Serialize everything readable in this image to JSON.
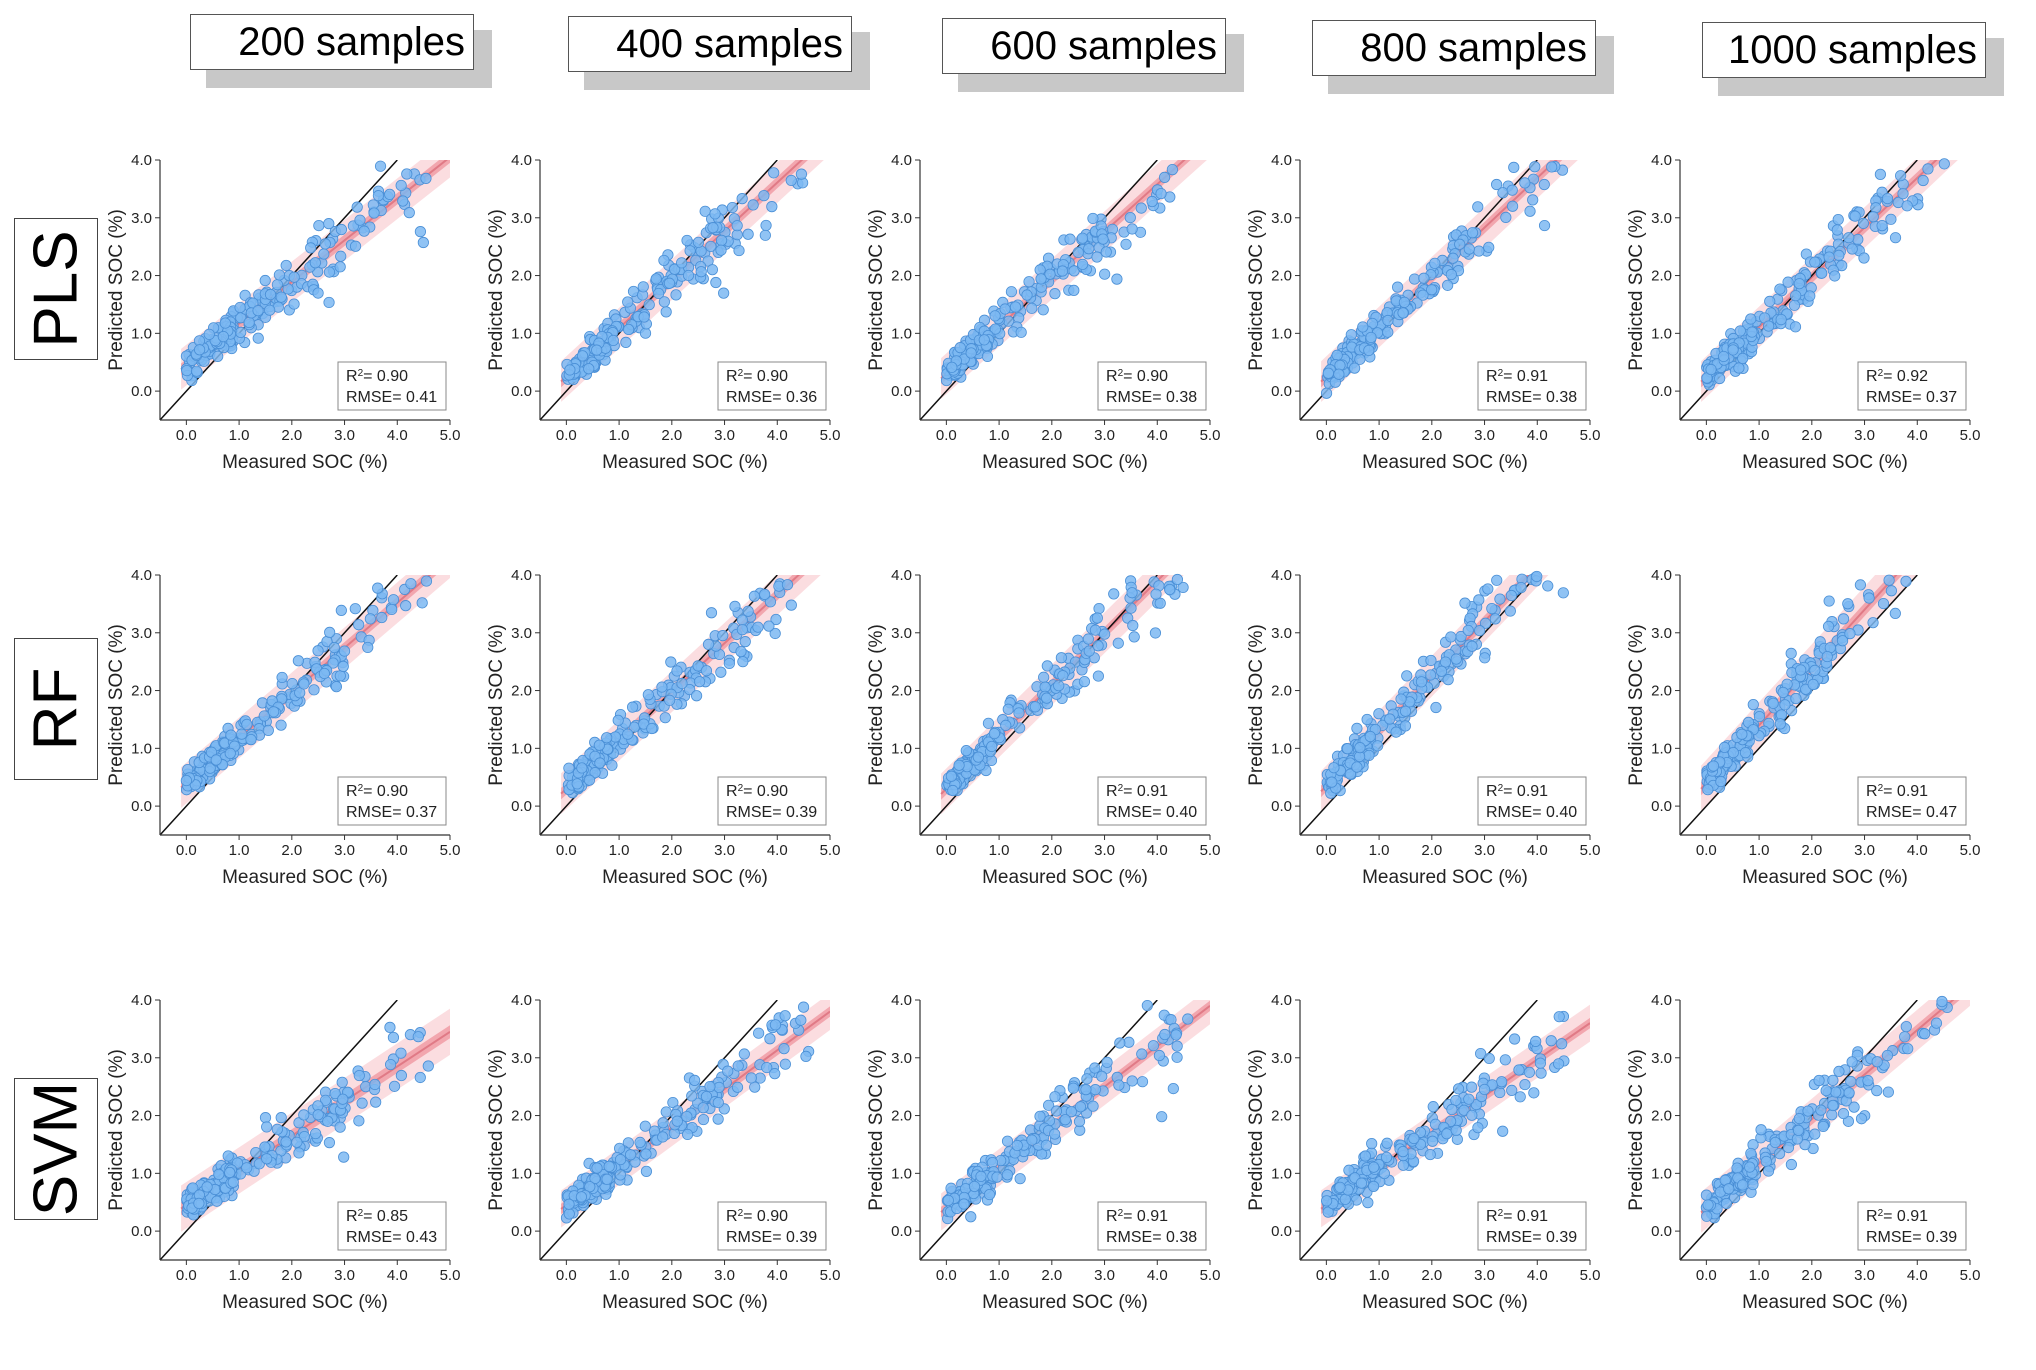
{
  "colors": {
    "point": "#7cb9f2",
    "point_edge": "#4a8fd6",
    "fit": "#e07a86",
    "band_inner": "#f2a6ae",
    "band_outer": "#fbdde0",
    "ref_line": "#111111"
  },
  "column_headers": [
    "200 samples",
    "400 samples",
    "600 samples",
    "800 samples",
    "1000 samples"
  ],
  "row_headers": [
    "PLS",
    "RF",
    "SVM"
  ],
  "chart_data": [
    {
      "type": "scatter",
      "model": "PLS",
      "samples": 200,
      "xlabel": "Measured SOC (%)",
      "ylabel": "Predicted SOC (%)",
      "xlim": [
        -0.5,
        5.0
      ],
      "ylim": [
        -0.5,
        4.0
      ],
      "xticks": [
        "0.0",
        "1.0",
        "2.0",
        "3.0",
        "4.0",
        "5.0"
      ],
      "yticks": [
        "0.0",
        "1.0",
        "2.0",
        "3.0",
        "4.0"
      ],
      "r2_label": "R",
      "r2_value": "= 0.90",
      "rmse_label": "RMSE= 0.41",
      "fit": {
        "slope": 0.72,
        "intercept": 0.45
      },
      "band": 0.22
    },
    {
      "type": "scatter",
      "model": "PLS",
      "samples": 400,
      "xlabel": "Measured SOC (%)",
      "ylabel": "Predicted SOC (%)",
      "xlim": [
        -0.5,
        5.0
      ],
      "ylim": [
        -0.5,
        4.0
      ],
      "xticks": [
        "0.0",
        "1.0",
        "2.0",
        "3.0",
        "4.0",
        "5.0"
      ],
      "yticks": [
        "0.0",
        "1.0",
        "2.0",
        "3.0",
        "4.0"
      ],
      "r2_label": "R",
      "r2_value": "= 0.90",
      "rmse_label": "RMSE= 0.36",
      "fit": {
        "slope": 0.84,
        "intercept": 0.25
      },
      "band": 0.22
    },
    {
      "type": "scatter",
      "model": "PLS",
      "samples": 600,
      "xlabel": "Measured SOC (%)",
      "ylabel": "Predicted SOC (%)",
      "xlim": [
        -0.5,
        5.0
      ],
      "ylim": [
        -0.5,
        4.0
      ],
      "xticks": [
        "0.0",
        "1.0",
        "2.0",
        "3.0",
        "4.0",
        "5.0"
      ],
      "yticks": [
        "0.0",
        "1.0",
        "2.0",
        "3.0",
        "4.0"
      ],
      "r2_label": "R",
      "r2_value": "= 0.90",
      "rmse_label": "RMSE= 0.38",
      "fit": {
        "slope": 0.82,
        "intercept": 0.3
      },
      "band": 0.22
    },
    {
      "type": "scatter",
      "model": "PLS",
      "samples": 800,
      "xlabel": "Measured SOC (%)",
      "ylabel": "Predicted SOC (%)",
      "xlim": [
        -0.5,
        5.0
      ],
      "ylim": [
        -0.5,
        4.0
      ],
      "xticks": [
        "0.0",
        "1.0",
        "2.0",
        "3.0",
        "4.0",
        "5.0"
      ],
      "yticks": [
        "0.0",
        "1.0",
        "2.0",
        "3.0",
        "4.0"
      ],
      "r2_label": "R",
      "r2_value": "= 0.91",
      "rmse_label": "RMSE= 0.38",
      "fit": {
        "slope": 0.86,
        "intercept": 0.25
      },
      "band": 0.22
    },
    {
      "type": "scatter",
      "model": "PLS",
      "samples": 1000,
      "xlabel": "Measured SOC (%)",
      "ylabel": "Predicted SOC (%)",
      "xlim": [
        -0.5,
        5.0
      ],
      "ylim": [
        -0.5,
        4.0
      ],
      "xticks": [
        "0.0",
        "1.0",
        "2.0",
        "3.0",
        "4.0",
        "5.0"
      ],
      "yticks": [
        "0.0",
        "1.0",
        "2.0",
        "3.0",
        "4.0"
      ],
      "r2_label": "R",
      "r2_value": "= 0.92",
      "rmse_label": "RMSE= 0.37",
      "fit": {
        "slope": 0.86,
        "intercept": 0.25
      },
      "band": 0.22
    },
    {
      "type": "scatter",
      "model": "RF",
      "samples": 200,
      "xlabel": "Measured SOC (%)",
      "ylabel": "Predicted SOC (%)",
      "xlim": [
        -0.5,
        5.0
      ],
      "ylim": [
        -0.5,
        4.0
      ],
      "xticks": [
        "0.0",
        "1.0",
        "2.0",
        "3.0",
        "4.0",
        "5.0"
      ],
      "yticks": [
        "0.0",
        "1.0",
        "2.0",
        "3.0",
        "4.0"
      ],
      "r2_label": "R",
      "r2_value": "= 0.90",
      "rmse_label": "RMSE= 0.37",
      "fit": {
        "slope": 0.78,
        "intercept": 0.4
      },
      "band": 0.22
    },
    {
      "type": "scatter",
      "model": "RF",
      "samples": 400,
      "xlabel": "Measured SOC (%)",
      "ylabel": "Predicted SOC (%)",
      "xlim": [
        -0.5,
        5.0
      ],
      "ylim": [
        -0.5,
        4.0
      ],
      "xticks": [
        "0.0",
        "1.0",
        "2.0",
        "3.0",
        "4.0",
        "5.0"
      ],
      "yticks": [
        "0.0",
        "1.0",
        "2.0",
        "3.0",
        "4.0"
      ],
      "r2_label": "R",
      "r2_value": "= 0.90",
      "rmse_label": "RMSE= 0.39",
      "fit": {
        "slope": 0.84,
        "intercept": 0.3
      },
      "band": 0.22
    },
    {
      "type": "scatter",
      "model": "RF",
      "samples": 600,
      "xlabel": "Measured SOC (%)",
      "ylabel": "Predicted SOC (%)",
      "xlim": [
        -0.5,
        5.0
      ],
      "ylim": [
        -0.5,
        4.0
      ],
      "xticks": [
        "0.0",
        "1.0",
        "2.0",
        "3.0",
        "4.0",
        "5.0"
      ],
      "yticks": [
        "0.0",
        "1.0",
        "2.0",
        "3.0",
        "4.0"
      ],
      "r2_label": "R",
      "r2_value": "= 0.91",
      "rmse_label": "RMSE= 0.40",
      "fit": {
        "slope": 0.9,
        "intercept": 0.3
      },
      "band": 0.22
    },
    {
      "type": "scatter",
      "model": "RF",
      "samples": 800,
      "xlabel": "Measured SOC (%)",
      "ylabel": "Predicted SOC (%)",
      "xlim": [
        -0.5,
        5.0
      ],
      "ylim": [
        -0.5,
        4.0
      ],
      "xticks": [
        "0.0",
        "1.0",
        "2.0",
        "3.0",
        "4.0",
        "5.0"
      ],
      "yticks": [
        "0.0",
        "1.0",
        "2.0",
        "3.0",
        "4.0"
      ],
      "r2_label": "R",
      "r2_value": "= 0.91",
      "rmse_label": "RMSE= 0.40",
      "fit": {
        "slope": 0.95,
        "intercept": 0.35
      },
      "band": 0.22
    },
    {
      "type": "scatter",
      "model": "RF",
      "samples": 1000,
      "xlabel": "Measured SOC (%)",
      "ylabel": "Predicted SOC (%)",
      "xlim": [
        -0.5,
        5.0
      ],
      "ylim": [
        -0.5,
        4.0
      ],
      "xticks": [
        "0.0",
        "1.0",
        "2.0",
        "3.0",
        "4.0",
        "5.0"
      ],
      "yticks": [
        "0.0",
        "1.0",
        "2.0",
        "3.0",
        "4.0"
      ],
      "r2_label": "R",
      "r2_value": "= 0.91",
      "rmse_label": "RMSE= 0.47",
      "fit": {
        "slope": 1.0,
        "intercept": 0.4
      },
      "band": 0.25
    },
    {
      "type": "scatter",
      "model": "SVM",
      "samples": 200,
      "xlabel": "Measured SOC (%)",
      "ylabel": "Predicted SOC (%)",
      "xlim": [
        -0.5,
        5.0
      ],
      "ylim": [
        -0.5,
        4.0
      ],
      "xticks": [
        "0.0",
        "1.0",
        "2.0",
        "3.0",
        "4.0",
        "5.0"
      ],
      "yticks": [
        "0.0",
        "1.0",
        "2.0",
        "3.0",
        "4.0"
      ],
      "r2_label": "R",
      "r2_value": "= 0.85",
      "rmse_label": "RMSE= 0.43",
      "fit": {
        "slope": 0.6,
        "intercept": 0.45
      },
      "band": 0.25
    },
    {
      "type": "scatter",
      "model": "SVM",
      "samples": 400,
      "xlabel": "Measured SOC (%)",
      "ylabel": "Predicted SOC (%)",
      "xlim": [
        -0.5,
        5.0
      ],
      "ylim": [
        -0.5,
        4.0
      ],
      "xticks": [
        "0.0",
        "1.0",
        "2.0",
        "3.0",
        "4.0",
        "5.0"
      ],
      "yticks": [
        "0.0",
        "1.0",
        "2.0",
        "3.0",
        "4.0"
      ],
      "r2_label": "R",
      "r2_value": "= 0.90",
      "rmse_label": "RMSE= 0.39",
      "fit": {
        "slope": 0.67,
        "intercept": 0.45
      },
      "band": 0.2
    },
    {
      "type": "scatter",
      "model": "SVM",
      "samples": 600,
      "xlabel": "Measured SOC (%)",
      "ylabel": "Predicted SOC (%)",
      "xlim": [
        -0.5,
        5.0
      ],
      "ylim": [
        -0.5,
        4.0
      ],
      "xticks": [
        "0.0",
        "1.0",
        "2.0",
        "3.0",
        "4.0",
        "5.0"
      ],
      "yticks": [
        "0.0",
        "1.0",
        "2.0",
        "3.0",
        "4.0"
      ],
      "r2_label": "R",
      "r2_value": "= 0.91",
      "rmse_label": "RMSE= 0.38",
      "fit": {
        "slope": 0.7,
        "intercept": 0.4
      },
      "band": 0.2
    },
    {
      "type": "scatter",
      "model": "SVM",
      "samples": 800,
      "xlabel": "Measured SOC (%)",
      "ylabel": "Predicted SOC (%)",
      "xlim": [
        -0.5,
        5.0
      ],
      "ylim": [
        -0.5,
        4.0
      ],
      "xticks": [
        "0.0",
        "1.0",
        "2.0",
        "3.0",
        "4.0",
        "5.0"
      ],
      "yticks": [
        "0.0",
        "1.0",
        "2.0",
        "3.0",
        "4.0"
      ],
      "r2_label": "R",
      "r2_value": "= 0.91",
      "rmse_label": "RMSE= 0.39",
      "fit": {
        "slope": 0.63,
        "intercept": 0.45
      },
      "band": 0.2
    },
    {
      "type": "scatter",
      "model": "SVM",
      "samples": 1000,
      "xlabel": "Measured SOC (%)",
      "ylabel": "Predicted SOC (%)",
      "xlim": [
        -0.5,
        5.0
      ],
      "ylim": [
        -0.5,
        4.0
      ],
      "xticks": [
        "0.0",
        "1.0",
        "2.0",
        "3.0",
        "4.0",
        "5.0"
      ],
      "yticks": [
        "0.0",
        "1.0",
        "2.0",
        "3.0",
        "4.0"
      ],
      "r2_label": "R",
      "r2_value": "= 0.91",
      "rmse_label": "RMSE= 0.39",
      "fit": {
        "slope": 0.77,
        "intercept": 0.4
      },
      "band": 0.22
    }
  ]
}
